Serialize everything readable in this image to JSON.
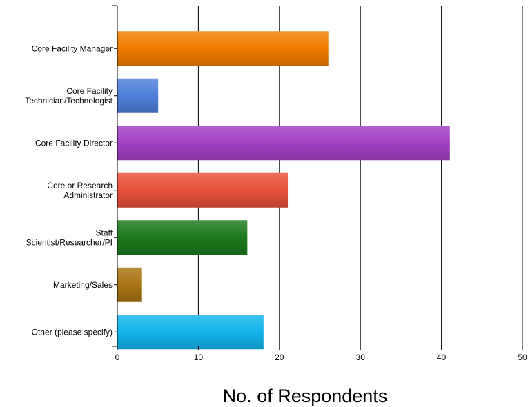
{
  "chart_data": {
    "type": "bar",
    "orientation": "horizontal",
    "categories": [
      [
        "Core Facility Manager"
      ],
      [
        "Core Facility",
        "Technician/Technologist"
      ],
      [
        "Core Facility Director"
      ],
      [
        "Core or Research",
        "Administrator"
      ],
      [
        "Staff",
        "Scientist/Researcher/PI"
      ],
      [
        "Marketing/Sales"
      ],
      [
        "Other (please specify)"
      ]
    ],
    "values": [
      26,
      5,
      41,
      21,
      16,
      3,
      18
    ],
    "colors": [
      "#f07c00",
      "#4f7fdc",
      "#a23fc4",
      "#e6513a",
      "#1c7a1c",
      "#a97412",
      "#12b4ec"
    ],
    "xlim": [
      0,
      50
    ],
    "xticks": [
      0,
      10,
      20,
      30,
      40,
      50
    ],
    "xlabel": "No. of Respondents",
    "ylabel": "",
    "title": "",
    "grid": "vertical",
    "legend": "none"
  }
}
